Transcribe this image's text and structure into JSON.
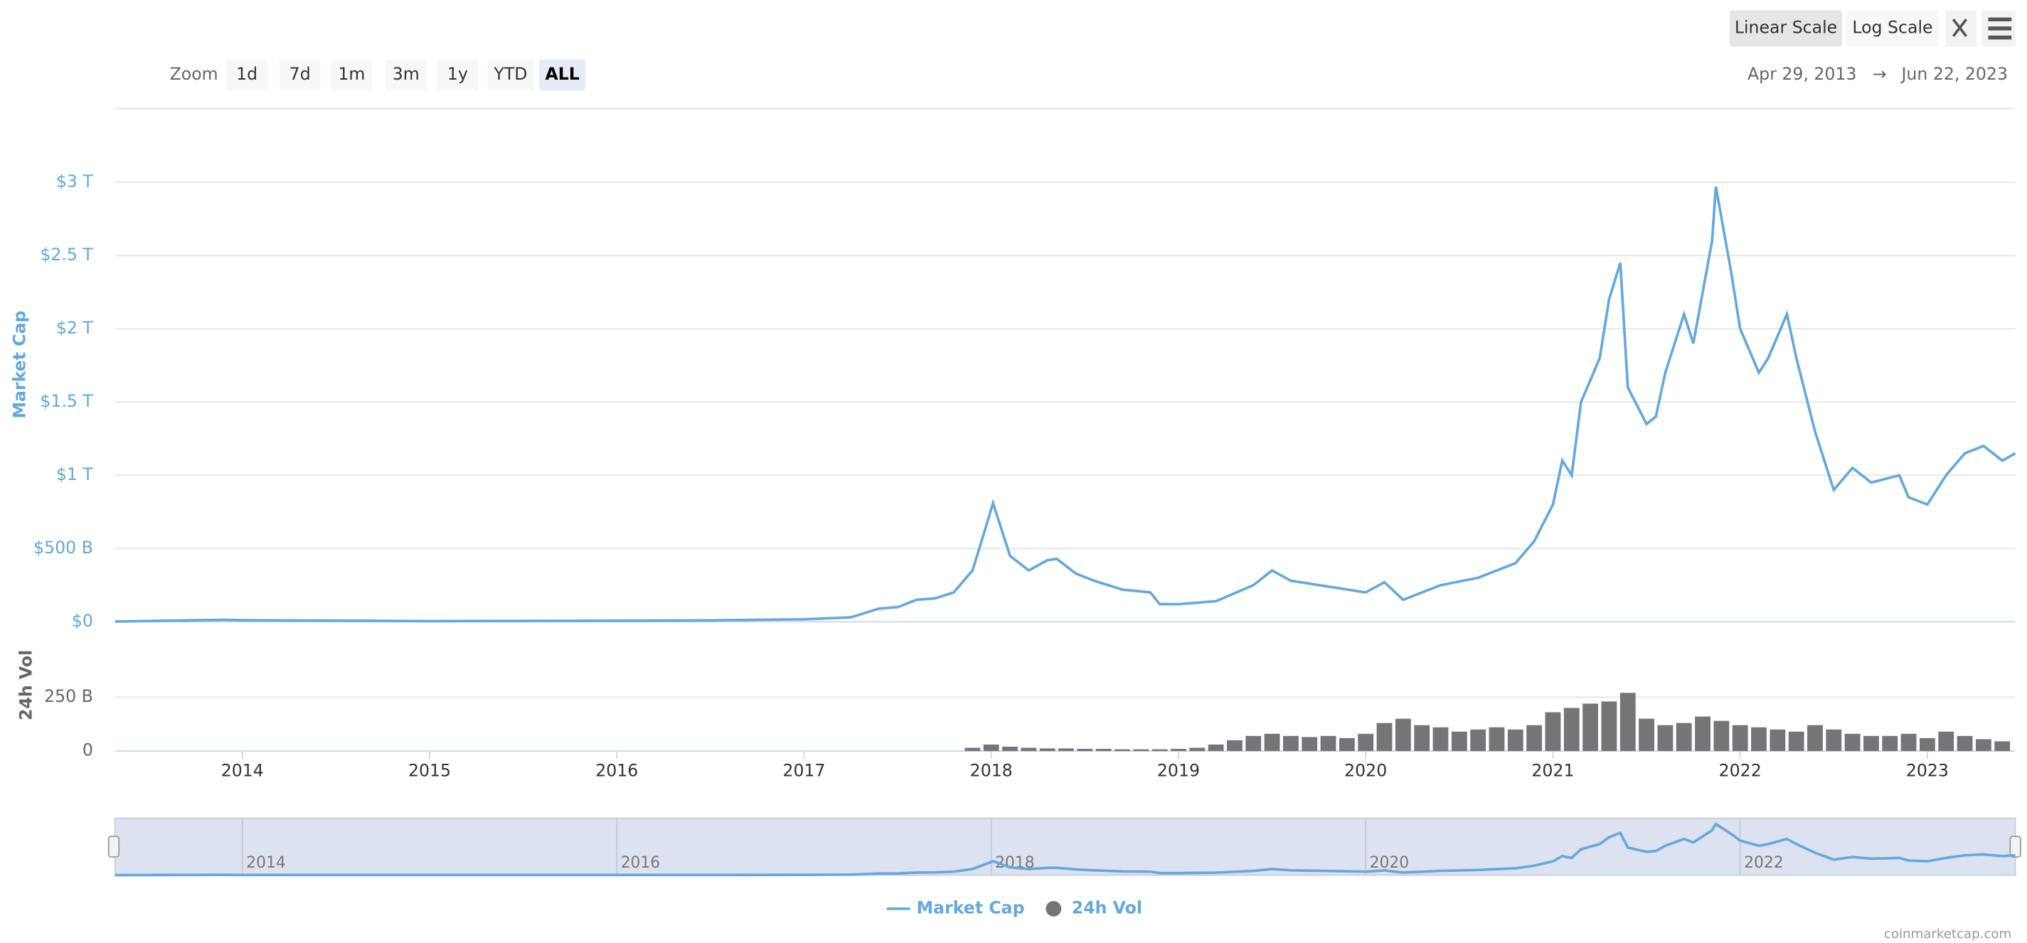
{
  "controls": {
    "zoom_label": "Zoom",
    "zoom": [
      {
        "label": "1d"
      },
      {
        "label": "7d"
      },
      {
        "label": "1m"
      },
      {
        "label": "3m"
      },
      {
        "label": "1y"
      },
      {
        "label": "YTD"
      },
      {
        "label": "ALL",
        "selected": true
      }
    ],
    "scale_buttons": [
      {
        "label": "Linear Scale",
        "selected": true
      },
      {
        "label": "Log Scale"
      }
    ],
    "range_from": "Apr 29, 2013",
    "range_arrow": "→",
    "range_to": "Jun 22, 2023"
  },
  "chart_data": [
    {
      "type": "line",
      "y_label": "Market Cap",
      "xlim": [
        2013.32,
        2023.47
      ],
      "ylim": [
        0,
        3000000000000.0
      ],
      "yticks": [
        {
          "value": 0,
          "label": "$0"
        },
        {
          "value": 500000000000.0,
          "label": "$500 B"
        },
        {
          "value": 1000000000000.0,
          "label": "$1 T"
        },
        {
          "value": 1500000000000.0,
          "label": "$1.5 T"
        },
        {
          "value": 2000000000000.0,
          "label": "$2 T"
        },
        {
          "value": 2500000000000.0,
          "label": "$2.5 T"
        },
        {
          "value": 3000000000000.0,
          "label": "$3 T"
        }
      ],
      "grid": true,
      "x": [
        2013.32,
        2013.9,
        2014.0,
        2014.5,
        2015.0,
        2016.0,
        2016.5,
        2017.0,
        2017.25,
        2017.4,
        2017.5,
        2017.6,
        2017.7,
        2017.8,
        2017.9,
        2017.96,
        2018.01,
        2018.05,
        2018.1,
        2018.2,
        2018.3,
        2018.35,
        2018.45,
        2018.55,
        2018.7,
        2018.85,
        2018.9,
        2019.0,
        2019.2,
        2019.4,
        2019.5,
        2019.6,
        2019.8,
        2020.0,
        2020.1,
        2020.2,
        2020.4,
        2020.6,
        2020.8,
        2020.9,
        2021.0,
        2021.05,
        2021.1,
        2021.15,
        2021.25,
        2021.3,
        2021.36,
        2021.4,
        2021.5,
        2021.55,
        2021.6,
        2021.7,
        2021.75,
        2021.85,
        2021.87,
        2021.95,
        2022.0,
        2022.1,
        2022.15,
        2022.25,
        2022.3,
        2022.4,
        2022.5,
        2022.6,
        2022.7,
        2022.85,
        2022.9,
        2023.0,
        2023.1,
        2023.2,
        2023.3,
        2023.4,
        2023.47
      ],
      "series": [
        {
          "name": "Market Cap",
          "color": "#64a8dd",
          "values": [
            1500000000.0,
            13000000000.0,
            11000000000.0,
            8000000000.0,
            4000000000.0,
            7000000000.0,
            10000000000.0,
            17000000000.0,
            30000000000.0,
            90000000000.0,
            100000000000.0,
            150000000000.0,
            160000000000.0,
            200000000000.0,
            350000000000.0,
            600000000000.0,
            810000000000.0,
            650000000000.0,
            450000000000.0,
            350000000000.0,
            420000000000.0,
            430000000000.0,
            330000000000.0,
            280000000000.0,
            220000000000.0,
            200000000000.0,
            120000000000.0,
            120000000000.0,
            140000000000.0,
            250000000000.0,
            350000000000.0,
            280000000000.0,
            240000000000.0,
            200000000000.0,
            270000000000.0,
            150000000000.0,
            250000000000.0,
            300000000000.0,
            400000000000.0,
            550000000000.0,
            800000000000.0,
            1100000000000.0,
            1000000000000.0,
            1500000000000.0,
            1800000000000.0,
            2200000000000.0,
            2450000000000.0,
            1600000000000.0,
            1350000000000.0,
            1400000000000.0,
            1700000000000.0,
            2100000000000.0,
            1900000000000.0,
            2600000000000.0,
            2970000000000.0,
            2400000000000.0,
            2000000000000.0,
            1700000000000.0,
            1800000000000.0,
            2100000000000.0,
            1800000000000.0,
            1300000000000.0,
            900000000000.0,
            1050000000000.0,
            950000000000.0,
            1000000000000.0,
            850000000000.0,
            800000000000.0,
            1000000000000.0,
            1150000000000.0,
            1200000000000.0,
            1100000000000.0,
            1150000000000.0
          ]
        }
      ]
    },
    {
      "type": "bar",
      "y_label": "24h Vol",
      "xlim": [
        2013.32,
        2023.47
      ],
      "xticks": [
        2014,
        2015,
        2016,
        2017,
        2018,
        2019,
        2020,
        2021,
        2022,
        2023
      ],
      "ylim": [
        0,
        300000000000.0
      ],
      "yticks": [
        0,
        {
          "value": 250000000000.0,
          "label": "250 B"
        }
      ],
      "x": [
        2017.9,
        2018.0,
        2018.1,
        2018.2,
        2018.3,
        2018.4,
        2018.5,
        2018.6,
        2018.7,
        2018.8,
        2018.9,
        2019.0,
        2019.1,
        2019.2,
        2019.3,
        2019.4,
        2019.5,
        2019.6,
        2019.7,
        2019.8,
        2019.9,
        2020.0,
        2020.1,
        2020.2,
        2020.3,
        2020.4,
        2020.5,
        2020.6,
        2020.7,
        2020.8,
        2020.9,
        2021.0,
        2021.1,
        2021.2,
        2021.3,
        2021.4,
        2021.5,
        2021.6,
        2021.7,
        2021.8,
        2021.9,
        2022.0,
        2022.1,
        2022.2,
        2022.3,
        2022.4,
        2022.5,
        2022.6,
        2022.7,
        2022.8,
        2022.9,
        2023.0,
        2023.1,
        2023.2,
        2023.3,
        2023.4
      ],
      "series": [
        {
          "name": "24h Vol",
          "color": "#757575",
          "values": [
            15000000000.0,
            30000000000.0,
            20000000000.0,
            15000000000.0,
            12000000000.0,
            12000000000.0,
            10000000000.0,
            10000000000.0,
            8000000000.0,
            8000000000.0,
            8000000000.0,
            10000000000.0,
            15000000000.0,
            30000000000.0,
            50000000000.0,
            70000000000.0,
            80000000000.0,
            70000000000.0,
            65000000000.0,
            70000000000.0,
            60000000000.0,
            80000000000.0,
            130000000000.0,
            150000000000.0,
            120000000000.0,
            110000000000.0,
            90000000000.0,
            100000000000.0,
            110000000000.0,
            100000000000.0,
            120000000000.0,
            180000000000.0,
            200000000000.0,
            220000000000.0,
            230000000000.0,
            270000000000.0,
            150000000000.0,
            120000000000.0,
            130000000000.0,
            160000000000.0,
            140000000000.0,
            120000000000.0,
            110000000000.0,
            100000000000.0,
            90000000000.0,
            120000000000.0,
            100000000000.0,
            80000000000.0,
            70000000000.0,
            70000000000.0,
            80000000000.0,
            60000000000.0,
            90000000000.0,
            70000000000.0,
            55000000000.0,
            45000000000.0
          ]
        }
      ]
    }
  ],
  "navigator": {
    "xticks": [
      2014,
      2016,
      2018,
      2020,
      2022
    ]
  },
  "credit": "coinmarketcap.com"
}
